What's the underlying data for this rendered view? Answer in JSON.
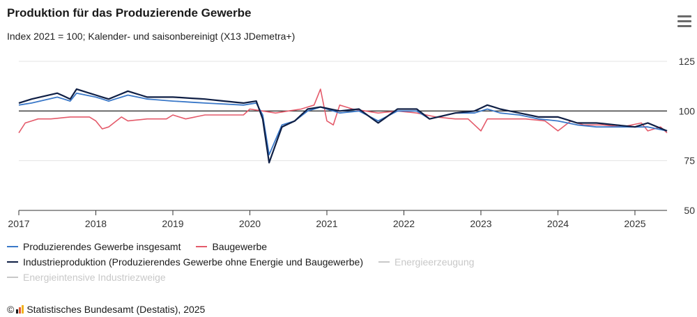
{
  "header": {
    "title": "Produktion für das Produzierende Gewerbe",
    "subtitle": "Index 2021 = 100; Kalender- und saisonbereinigt (X13 JDemetra+)"
  },
  "source": {
    "copyright_symbol": "©",
    "text": "Statistisches Bundesamt (Destatis), 2025"
  },
  "colors": {
    "produzierendes": "#3a78c8",
    "bau": "#e45a6a",
    "industrie": "#0f1f45",
    "disabled": "#c8c8c8",
    "reference": "#333333",
    "grid": "#e3e3e3",
    "axis": "#333333"
  },
  "chart_data": {
    "type": "line",
    "title": "Produktion für das Produzierende Gewerbe",
    "subtitle": "Index 2021 = 100; Kalender- und saisonbereinigt (X13 JDemetra+)",
    "x_start": "2017-01",
    "x_end": "2025-06",
    "x_frequency": "monthly",
    "x_tick_labels": [
      "2017",
      "2018",
      "2019",
      "2020",
      "2021",
      "2022",
      "2023",
      "2024",
      "2025"
    ],
    "ylim": [
      50,
      125
    ],
    "y_ticks": [
      50,
      75,
      100,
      125
    ],
    "y_axis_position": "right",
    "reference_line": 100,
    "grid": true,
    "legend_position": "bottom",
    "series": [
      {
        "name": "Produzierendes Gewerbe insgesamt",
        "color": "#3a78c8",
        "visible": true,
        "anchors": [
          [
            "2017-01",
            103
          ],
          [
            "2017-03",
            104
          ],
          [
            "2017-07",
            107
          ],
          [
            "2017-09",
            105
          ],
          [
            "2017-10",
            109
          ],
          [
            "2018-01",
            107
          ],
          [
            "2018-03",
            105
          ],
          [
            "2018-06",
            108
          ],
          [
            "2018-09",
            106
          ],
          [
            "2019-01",
            105
          ],
          [
            "2019-06",
            104
          ],
          [
            "2019-12",
            103
          ],
          [
            "2020-02",
            104
          ],
          [
            "2020-03",
            98
          ],
          [
            "2020-04",
            78
          ],
          [
            "2020-06",
            93
          ],
          [
            "2020-08",
            95
          ],
          [
            "2020-10",
            100
          ],
          [
            "2020-12",
            102
          ],
          [
            "2021-03",
            99
          ],
          [
            "2021-06",
            100
          ],
          [
            "2021-09",
            95
          ],
          [
            "2021-12",
            100
          ],
          [
            "2022-03",
            100
          ],
          [
            "2022-05",
            96
          ],
          [
            "2022-09",
            99
          ],
          [
            "2022-12",
            99
          ],
          [
            "2023-02",
            101
          ],
          [
            "2023-04",
            99
          ],
          [
            "2023-07",
            98
          ],
          [
            "2023-10",
            96
          ],
          [
            "2024-01",
            95
          ],
          [
            "2024-04",
            93
          ],
          [
            "2024-07",
            92
          ],
          [
            "2024-10",
            92
          ],
          [
            "2025-01",
            92
          ],
          [
            "2025-03",
            92
          ],
          [
            "2025-06",
            90
          ]
        ]
      },
      {
        "name": "Baugewerbe",
        "color": "#e45a6a",
        "visible": true,
        "anchors": [
          [
            "2017-01",
            89
          ],
          [
            "2017-02",
            94
          ],
          [
            "2017-04",
            96
          ],
          [
            "2017-06",
            96
          ],
          [
            "2017-09",
            97
          ],
          [
            "2017-12",
            97
          ],
          [
            "2018-01",
            95
          ],
          [
            "2018-02",
            91
          ],
          [
            "2018-03",
            92
          ],
          [
            "2018-05",
            97
          ],
          [
            "2018-06",
            95
          ],
          [
            "2018-09",
            96
          ],
          [
            "2018-12",
            96
          ],
          [
            "2019-01",
            98
          ],
          [
            "2019-03",
            96
          ],
          [
            "2019-06",
            98
          ],
          [
            "2019-09",
            98
          ],
          [
            "2019-12",
            98
          ],
          [
            "2020-01",
            101
          ],
          [
            "2020-03",
            100
          ],
          [
            "2020-05",
            99
          ],
          [
            "2020-07",
            100
          ],
          [
            "2020-09",
            101
          ],
          [
            "2020-11",
            103
          ],
          [
            "2020-12",
            111
          ],
          [
            "2021-01",
            95
          ],
          [
            "2021-02",
            93
          ],
          [
            "2021-03",
            103
          ],
          [
            "2021-05",
            101
          ],
          [
            "2021-07",
            100
          ],
          [
            "2021-09",
            99
          ],
          [
            "2021-12",
            100
          ],
          [
            "2022-03",
            99
          ],
          [
            "2022-06",
            97
          ],
          [
            "2022-09",
            96
          ],
          [
            "2022-11",
            96
          ],
          [
            "2023-01",
            90
          ],
          [
            "2023-02",
            96
          ],
          [
            "2023-05",
            96
          ],
          [
            "2023-08",
            96
          ],
          [
            "2023-11",
            95
          ],
          [
            "2024-01",
            90
          ],
          [
            "2024-03",
            95
          ],
          [
            "2024-05",
            93
          ],
          [
            "2024-08",
            93
          ],
          [
            "2024-11",
            92
          ],
          [
            "2025-02",
            94
          ],
          [
            "2025-03",
            90
          ],
          [
            "2025-05",
            92
          ],
          [
            "2025-06",
            89
          ]
        ]
      },
      {
        "name": "Industrieproduktion (Produzierendes Gewerbe ohne Energie und Baugewerbe)",
        "color": "#0f1f45",
        "visible": true,
        "anchors": [
          [
            "2017-01",
            104
          ],
          [
            "2017-03",
            106
          ],
          [
            "2017-07",
            109
          ],
          [
            "2017-09",
            106
          ],
          [
            "2017-10",
            111
          ],
          [
            "2018-01",
            108
          ],
          [
            "2018-03",
            106
          ],
          [
            "2018-06",
            110
          ],
          [
            "2018-09",
            107
          ],
          [
            "2019-01",
            107
          ],
          [
            "2019-06",
            106
          ],
          [
            "2019-12",
            104
          ],
          [
            "2020-02",
            105
          ],
          [
            "2020-03",
            96
          ],
          [
            "2020-04",
            74
          ],
          [
            "2020-06",
            92
          ],
          [
            "2020-08",
            95
          ],
          [
            "2020-10",
            101
          ],
          [
            "2020-12",
            102
          ],
          [
            "2021-03",
            100
          ],
          [
            "2021-06",
            101
          ],
          [
            "2021-09",
            94
          ],
          [
            "2021-12",
            101
          ],
          [
            "2022-03",
            101
          ],
          [
            "2022-05",
            96
          ],
          [
            "2022-09",
            99
          ],
          [
            "2022-12",
            100
          ],
          [
            "2023-02",
            103
          ],
          [
            "2023-04",
            101
          ],
          [
            "2023-07",
            99
          ],
          [
            "2023-10",
            97
          ],
          [
            "2024-01",
            97
          ],
          [
            "2024-04",
            94
          ],
          [
            "2024-07",
            94
          ],
          [
            "2024-10",
            93
          ],
          [
            "2025-01",
            92
          ],
          [
            "2025-03",
            94
          ],
          [
            "2025-06",
            90
          ]
        ]
      },
      {
        "name": "Energieerzeugung",
        "color": "#c8c8c8",
        "visible": false,
        "anchors": []
      },
      {
        "name": "Energieintensive Industriezweige",
        "color": "#c8c8c8",
        "visible": false,
        "anchors": []
      }
    ]
  }
}
